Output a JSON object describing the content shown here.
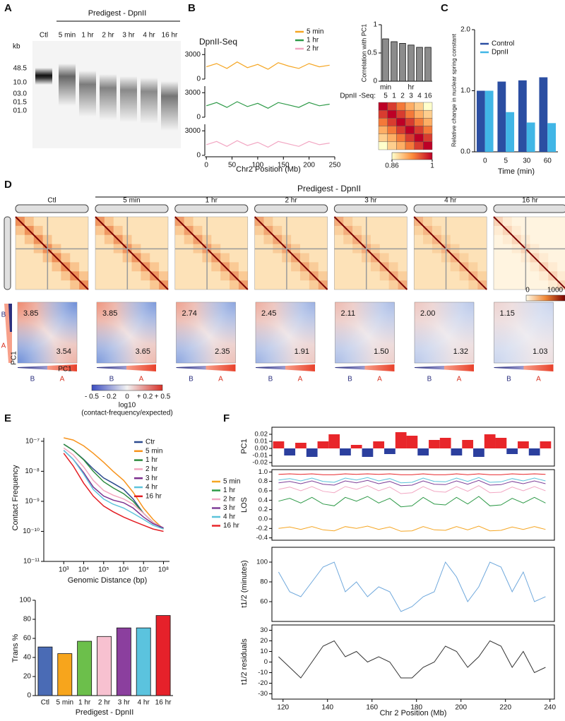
{
  "panel_labels": [
    "A",
    "B",
    "C",
    "D",
    "E",
    "F"
  ],
  "gel": {
    "title": "Predigest - DpnII",
    "lanes": [
      "Ctl",
      "5 min",
      "1 hr",
      "2 hr",
      "3 hr",
      "4 hr",
      "16 hr"
    ],
    "unit": "kb",
    "markers": [
      "48.5",
      "10.0",
      "03.0",
      "01.5",
      "01.0"
    ]
  },
  "hic": {
    "title": "Predigest - DpnII",
    "samples": [
      "Ctl",
      "5 min",
      "1 hr",
      "2 hr",
      "3 hr",
      "4 hr",
      "16 hr"
    ],
    "colorbar_ticks": [
      "0",
      "1000"
    ]
  },
  "saddle": {
    "values": [
      [
        "3.85",
        "3.54"
      ],
      [
        "3.85",
        "3.65"
      ],
      [
        "2.74",
        "2.35"
      ],
      [
        "2.45",
        "1.91"
      ],
      [
        "2.11",
        "1.50"
      ],
      [
        "2.00",
        "1.32"
      ],
      [
        "1.15",
        "1.03"
      ]
    ],
    "b_label": "B",
    "a_label": "A",
    "axis_label": "PC1",
    "colorbar_ticks": [
      "- 0.5",
      "- 0.2",
      "0",
      "+ 0.2",
      "+ 0.5"
    ],
    "colorbar_title": "log10",
    "colorbar_subtitle": "(contact-frequency/expected)"
  },
  "chart_data": [
    {
      "type": "line",
      "title": "DpnII-Seq",
      "x_label": "Chr2 Position (Mb)",
      "x": [
        0,
        20,
        40,
        60,
        80,
        100,
        120,
        140,
        160,
        180,
        200,
        220,
        240
      ],
      "xlim": [
        -3,
        250
      ],
      "xticks": [
        0,
        50,
        100,
        150,
        200,
        250
      ],
      "ylim": [
        0,
        3800
      ],
      "yticks": [
        0,
        3000
      ],
      "series": [
        {
          "name": "5 min",
          "color": "#f5a623",
          "values": [
            1500,
            1900,
            1300,
            2100,
            1400,
            1800,
            1200,
            2000,
            1600,
            1300,
            1900,
            1500,
            1700
          ]
        },
        {
          "name": "1 hr",
          "color": "#2e9a48",
          "values": [
            1400,
            1800,
            1200,
            1900,
            1300,
            1700,
            1100,
            1800,
            1500,
            1200,
            1800,
            1400,
            1600
          ]
        },
        {
          "name": "2 hr",
          "color": "#f2a7c3",
          "values": [
            1300,
            1700,
            1100,
            1800,
            1200,
            1600,
            1000,
            1700,
            1400,
            1100,
            1700,
            1300,
            1500
          ]
        }
      ]
    },
    {
      "type": "bar",
      "y_label": "Correlation with PC1",
      "x_label": "DpnII -Seq:",
      "categories": [
        "5",
        "1",
        "2",
        "3",
        "4",
        "16"
      ],
      "group_labels": [
        "min",
        "hr"
      ],
      "values": [
        0.75,
        0.7,
        0.67,
        0.64,
        0.6,
        0.6
      ],
      "color": "#8c8c8c",
      "ylim": [
        0,
        1
      ],
      "yticks": [
        0,
        0.5,
        1
      ]
    },
    {
      "type": "heatmap",
      "values": [
        [
          1,
          0.97,
          0.94,
          0.91,
          0.89,
          0.86
        ],
        [
          0.97,
          1,
          0.97,
          0.94,
          0.91,
          0.89
        ],
        [
          0.94,
          0.97,
          1,
          0.97,
          0.94,
          0.91
        ],
        [
          0.91,
          0.94,
          0.97,
          1,
          0.97,
          0.94
        ],
        [
          0.89,
          0.91,
          0.94,
          0.97,
          1,
          0.97
        ],
        [
          0.86,
          0.89,
          0.91,
          0.94,
          0.97,
          1
        ]
      ],
      "clim": [
        0.86,
        1
      ],
      "cticks": [
        0.86,
        1
      ],
      "colors": [
        "#ffffcc",
        "#fd8d3c",
        "#bd0026"
      ]
    },
    {
      "type": "bar",
      "y_label": "Relative change in nuclear spring constant",
      "x_label": "Time (min)",
      "categories": [
        "0",
        "5",
        "30",
        "60"
      ],
      "series": [
        {
          "name": "Control",
          "color": "#2b4ea2",
          "values": [
            1.0,
            1.15,
            1.17,
            1.22
          ]
        },
        {
          "name": "DpnII",
          "color": "#41b6e6",
          "values": [
            1.0,
            0.65,
            0.48,
            0.47
          ]
        }
      ],
      "ylim": [
        0,
        2
      ],
      "yticks": [
        {
          "value": 0,
          "label": "0.0"
        },
        {
          "value": 1,
          "label": "1.0"
        },
        {
          "value": 2,
          "label": "2.0"
        }
      ]
    },
    {
      "type": "line",
      "log_scale": true,
      "x_label": "Genomic Distance (bp)",
      "y_label": "Contact Frequency",
      "x": [
        1000,
        3000,
        10000,
        30000,
        100000,
        300000,
        1000000,
        3000000,
        10000000,
        30000000,
        100000000
      ],
      "xlim": [
        100,
        200000000
      ],
      "xticks": [
        {
          "value": 1000,
          "label": "10³"
        },
        {
          "value": 10000,
          "label": "10⁴"
        },
        {
          "value": 100000,
          "label": "10⁵"
        },
        {
          "value": 1000000,
          "label": "10⁶"
        },
        {
          "value": 10000000,
          "label": "10⁷"
        },
        {
          "value": 100000000,
          "label": "10⁸"
        }
      ],
      "ylim": [
        1e-11,
        1.3e-07
      ],
      "yticks": [
        {
          "value": 1e-07,
          "label": "10⁻⁷"
        },
        {
          "value": 1e-08,
          "label": "10⁻⁸"
        },
        {
          "value": 1e-09,
          "label": "10⁻⁹"
        },
        {
          "value": 1e-10,
          "label": "10⁻¹⁰"
        },
        {
          "value": 1e-11,
          "label": "10⁻¹¹"
        }
      ],
      "series": [
        {
          "name": "Ctr",
          "color": "#2c4a8e",
          "values": [
            8e-08,
            5e-08,
            2.5e-08,
            1.2e-08,
            6e-09,
            4e-09,
            2.5e-09,
            1.2e-09,
            4e-10,
            2e-10,
            1.2e-10
          ]
        },
        {
          "name": "5 min",
          "color": "#f7941d",
          "values": [
            1.3e-07,
            1.1e-07,
            7e-08,
            4e-08,
            2e-08,
            1e-08,
            5e-09,
            2e-09,
            6e-10,
            2.5e-10,
            1.2e-10
          ]
        },
        {
          "name": "1 hr",
          "color": "#2e8b3e",
          "values": [
            8e-08,
            5e-08,
            2.4e-08,
            1e-08,
            4.5e-09,
            2.8e-09,
            1.8e-09,
            1e-09,
            4e-10,
            2e-10,
            1.3e-10
          ]
        },
        {
          "name": "2 hr",
          "color": "#f4a6bf",
          "values": [
            6e-08,
            3.5e-08,
            1.4e-08,
            5e-09,
            2.3e-09,
            1.6e-09,
            1.2e-09,
            8e-10,
            4e-10,
            2e-10,
            1.3e-10
          ]
        },
        {
          "name": "3 hr",
          "color": "#7b2f8e",
          "values": [
            5e-08,
            2.5e-08,
            9e-09,
            3e-09,
            1.5e-09,
            1.1e-09,
            9e-10,
            6e-10,
            3e-10,
            1.8e-10,
            1.3e-10
          ]
        },
        {
          "name": "4 hr",
          "color": "#5ec4dc",
          "values": [
            5e-08,
            2.5e-08,
            8e-09,
            2.5e-09,
            1.2e-09,
            8e-10,
            6e-10,
            4e-10,
            2.5e-10,
            1.6e-10,
            1.2e-10
          ]
        },
        {
          "name": "16 hr",
          "color": "#e31e24",
          "values": [
            4e-08,
            1.5e-08,
            4e-09,
            1.5e-09,
            7e-10,
            4.5e-10,
            3e-10,
            2.2e-10,
            1.6e-10,
            1.2e-10,
            1e-10
          ]
        }
      ]
    },
    {
      "type": "bar",
      "y_label": "Trans %",
      "x_label": "Predigest - DpnII",
      "categories": [
        "Ctl",
        "5 min",
        "1 hr",
        "2 hr",
        "3 hr",
        "4 hr",
        "16 hr"
      ],
      "values": [
        51,
        44,
        57,
        62,
        71,
        71,
        84
      ],
      "colors": [
        "#4a6bb5",
        "#f7a51c",
        "#6cbf4b",
        "#f7c1d0",
        "#8b3f9e",
        "#5bc3de",
        "#e6212a"
      ],
      "ylim": [
        0,
        100
      ],
      "yticks": [
        0,
        20,
        40,
        60,
        80,
        100
      ]
    },
    {
      "type": "area",
      "y_label": "PC1",
      "x": [
        118,
        123,
        128,
        133,
        138,
        143,
        148,
        153,
        158,
        163,
        168,
        173,
        178,
        183,
        188,
        193,
        198,
        203,
        208,
        213,
        218,
        223,
        228,
        233,
        238
      ],
      "values": [
        0.01,
        -0.01,
        0.008,
        -0.012,
        0.01,
        0.02,
        -0.01,
        0.005,
        -0.012,
        0.01,
        -0.008,
        0.023,
        0.018,
        -0.01,
        0.012,
        0.015,
        -0.01,
        0.012,
        -0.012,
        0.02,
        0.015,
        -0.008,
        0.01,
        -0.01,
        0.01
      ],
      "positive_color": "#e8262a",
      "negative_color": "#2b3f9e",
      "xlim": [
        115,
        242
      ],
      "ylim": [
        -0.025,
        0.03
      ],
      "yticks": [
        -0.02,
        -0.01,
        {
          "value": 0,
          "label": "0.00"
        },
        0.01,
        0.02
      ]
    },
    {
      "type": "line",
      "y_label": "LOS",
      "x": [
        118,
        123,
        128,
        133,
        138,
        143,
        148,
        153,
        158,
        163,
        168,
        173,
        178,
        183,
        188,
        193,
        198,
        203,
        208,
        213,
        218,
        223,
        228,
        233,
        238
      ],
      "xlim": [
        115,
        242
      ],
      "ylim": [
        -0.45,
        1.05
      ],
      "yticks": [
        {
          "value": 1,
          "label": "1.0"
        },
        0.8,
        0.6,
        0.4,
        0.2,
        {
          "value": 0,
          "label": "0.0"
        },
        -0.2,
        -0.4
      ],
      "series": [
        {
          "name": "5 min",
          "color": "#f5a623",
          "values": [
            -0.2,
            -0.17,
            -0.22,
            -0.16,
            -0.23,
            -0.25,
            -0.16,
            -0.2,
            -0.15,
            -0.22,
            -0.17,
            -0.26,
            -0.25,
            -0.16,
            -0.23,
            -0.24,
            -0.16,
            -0.23,
            -0.15,
            -0.25,
            -0.24,
            -0.17,
            -0.22,
            -0.16,
            -0.22
          ]
        },
        {
          "name": "1 hr",
          "color": "#2e9a48",
          "values": [
            0.38,
            0.44,
            0.34,
            0.46,
            0.32,
            0.28,
            0.46,
            0.38,
            0.48,
            0.34,
            0.44,
            0.26,
            0.28,
            0.46,
            0.32,
            0.3,
            0.46,
            0.32,
            0.48,
            0.28,
            0.3,
            0.44,
            0.34,
            0.46,
            0.34
          ]
        },
        {
          "name": "2 hr",
          "color": "#f2a7c3",
          "values": [
            0.63,
            0.68,
            0.6,
            0.69,
            0.59,
            0.56,
            0.69,
            0.63,
            0.71,
            0.6,
            0.68,
            0.54,
            0.56,
            0.69,
            0.59,
            0.57,
            0.69,
            0.59,
            0.71,
            0.56,
            0.57,
            0.68,
            0.6,
            0.69,
            0.6
          ]
        },
        {
          "name": "3 hr",
          "color": "#7e3f98",
          "values": [
            0.77,
            0.8,
            0.75,
            0.81,
            0.74,
            0.72,
            0.81,
            0.77,
            0.82,
            0.75,
            0.8,
            0.71,
            0.72,
            0.81,
            0.74,
            0.73,
            0.81,
            0.74,
            0.82,
            0.72,
            0.73,
            0.8,
            0.75,
            0.81,
            0.75
          ]
        },
        {
          "name": "4 hr",
          "color": "#5bc3d9",
          "values": [
            0.83,
            0.86,
            0.81,
            0.87,
            0.8,
            0.78,
            0.87,
            0.83,
            0.88,
            0.81,
            0.86,
            0.77,
            0.78,
            0.87,
            0.8,
            0.79,
            0.87,
            0.8,
            0.88,
            0.78,
            0.79,
            0.86,
            0.81,
            0.87,
            0.81
          ]
        },
        {
          "name": "16 hr",
          "color": "#e8262a",
          "values": [
            0.95,
            0.96,
            0.95,
            0.96,
            0.94,
            0.94,
            0.96,
            0.95,
            0.96,
            0.95,
            0.96,
            0.94,
            0.94,
            0.96,
            0.94,
            0.94,
            0.96,
            0.94,
            0.96,
            0.94,
            0.94,
            0.96,
            0.95,
            0.96,
            0.95
          ]
        }
      ]
    },
    {
      "type": "line",
      "y_label": "t1/2 (minutes)",
      "x": [
        118,
        123,
        128,
        133,
        138,
        143,
        148,
        153,
        158,
        163,
        168,
        173,
        178,
        183,
        188,
        193,
        198,
        203,
        208,
        213,
        218,
        223,
        228,
        233,
        238
      ],
      "values": [
        90,
        70,
        65,
        80,
        95,
        100,
        70,
        80,
        65,
        75,
        70,
        50,
        55,
        65,
        70,
        100,
        85,
        60,
        75,
        100,
        95,
        70,
        90,
        60,
        65
      ],
      "color": "#6fa8dc",
      "xlim": [
        115,
        242
      ],
      "ylim": [
        40,
        115
      ],
      "yticks": [
        60,
        80,
        100
      ]
    },
    {
      "type": "line",
      "y_label": "t1/2 residuals",
      "x_label": "Chr 2 Position (Mb)",
      "x": [
        118,
        123,
        128,
        133,
        138,
        143,
        148,
        153,
        158,
        163,
        168,
        173,
        178,
        183,
        188,
        193,
        198,
        203,
        208,
        213,
        218,
        223,
        228,
        233,
        238
      ],
      "values": [
        5,
        -5,
        -15,
        0,
        15,
        20,
        5,
        10,
        0,
        5,
        0,
        -15,
        -15,
        -5,
        0,
        15,
        10,
        -5,
        5,
        20,
        15,
        -5,
        10,
        -10,
        -5
      ],
      "color": "#333333",
      "xlim": [
        115,
        242
      ],
      "xticks": [
        120,
        140,
        160,
        180,
        200,
        220,
        240
      ],
      "ylim": [
        -35,
        35
      ],
      "yticks": [
        -30,
        -20,
        -10,
        0,
        10,
        20,
        30
      ]
    }
  ]
}
